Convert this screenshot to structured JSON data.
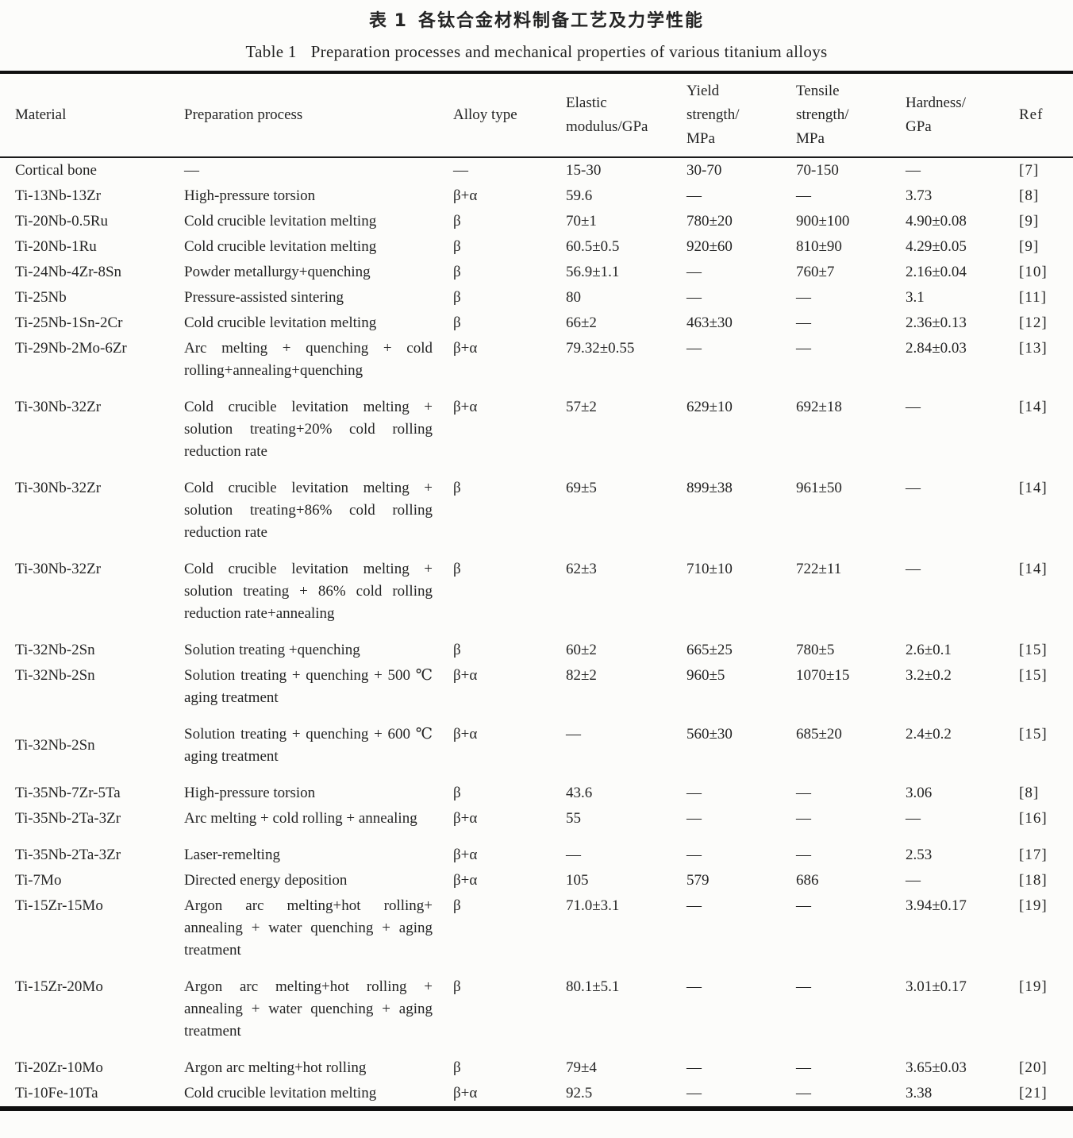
{
  "titles": {
    "cn_label": "表 1",
    "cn_text": "各钛合金材料制备工艺及力学性能",
    "en_label": "Table 1",
    "en_text": "Preparation processes and mechanical properties of various titanium alloys"
  },
  "table": {
    "columns": [
      "Material",
      "Preparation process",
      "Alloy type",
      "Elastic\nmodulus/GPa",
      "Yield\nstrength/\nMPa",
      "Tensile\nstrength/\nMPa",
      "Hardness/\nGPa",
      "Ref"
    ],
    "rows": [
      {
        "material": "Cortical bone",
        "process": "—",
        "alloy": "—",
        "elastic": "15-30",
        "yield": "30-70",
        "tensile": "70-150",
        "hardness": "—",
        "ref": "[7]"
      },
      {
        "material": "Ti-13Nb-13Zr",
        "process": "High-pressure torsion",
        "alloy": "β+α",
        "elastic": "59.6",
        "yield": "—",
        "tensile": "—",
        "hardness": "3.73",
        "ref": "[8]"
      },
      {
        "material": "Ti-20Nb-0.5Ru",
        "process": "Cold crucible levitation melting",
        "alloy": "β",
        "elastic": "70±1",
        "yield": "780±20",
        "tensile": "900±100",
        "hardness": "4.90±0.08",
        "ref": "[9]"
      },
      {
        "material": "Ti-20Nb-1Ru",
        "process": "Cold crucible levitation melting",
        "alloy": "β",
        "elastic": "60.5±0.5",
        "yield": "920±60",
        "tensile": "810±90",
        "hardness": "4.29±0.05",
        "ref": "[9]"
      },
      {
        "material": "Ti-24Nb-4Zr-8Sn",
        "process": "Powder metallurgy+quenching",
        "alloy": "β",
        "elastic": "56.9±1.1",
        "yield": "—",
        "tensile": "760±7",
        "hardness": "2.16±0.04",
        "ref": "[10]"
      },
      {
        "material": "Ti-25Nb",
        "process": "Pressure-assisted sintering",
        "alloy": "β",
        "elastic": "80",
        "yield": "—",
        "tensile": "—",
        "hardness": "3.1",
        "ref": "[11]"
      },
      {
        "material": "Ti-25Nb-1Sn-2Cr",
        "process": "Cold crucible levitation melting",
        "alloy": "β",
        "elastic": "66±2",
        "yield": "463±30",
        "tensile": "—",
        "hardness": "2.36±0.13",
        "ref": "[12]"
      },
      {
        "material": "Ti-29Nb-2Mo-6Zr",
        "process": "Arc melting + quenching + cold rolling+annealing+quenching",
        "alloy": "β+α",
        "elastic": "79.32±0.55",
        "yield": "—",
        "tensile": "—",
        "hardness": "2.84±0.03",
        "ref": "[13]",
        "gap": true
      },
      {
        "material": "Ti-30Nb-32Zr",
        "process": "Cold crucible levitation melting + solution treating+20% cold rolling reduction rate",
        "alloy": "β+α",
        "elastic": "57±2",
        "yield": "629±10",
        "tensile": "692±18",
        "hardness": "—",
        "ref": "[14]",
        "gap": true
      },
      {
        "material": "Ti-30Nb-32Zr",
        "process": "Cold crucible levitation melting + solution treating+86% cold rolling reduction rate",
        "alloy": "β",
        "elastic": "69±5",
        "yield": "899±38",
        "tensile": "961±50",
        "hardness": "—",
        "ref": "[14]",
        "gap": true
      },
      {
        "material": "Ti-30Nb-32Zr",
        "process": "Cold crucible levitation melting + solution treating + 86% cold rolling reduction rate+annealing",
        "alloy": "β",
        "elastic": "62±3",
        "yield": "710±10",
        "tensile": "722±11",
        "hardness": "—",
        "ref": "[14]",
        "gap": true
      },
      {
        "material": "Ti-32Nb-2Sn",
        "process": "Solution treating +quenching",
        "alloy": "β",
        "elastic": "60±2",
        "yield": "665±25",
        "tensile": "780±5",
        "hardness": "2.6±0.1",
        "ref": "[15]"
      },
      {
        "material": "Ti-32Nb-2Sn",
        "process": "Solution treating + quenching + 500 ℃ aging treatment",
        "alloy": "β+α",
        "elastic": "82±2",
        "yield": "960±5",
        "tensile": "1070±15",
        "hardness": "3.2±0.2",
        "ref": "[15]",
        "gap": true
      },
      {
        "material": "Ti-32Nb-2Sn",
        "process": "Solution treating + quenching + 600 ℃ aging treatment",
        "alloy": "β+α",
        "elastic": "—",
        "yield": "560±30",
        "tensile": "685±20",
        "hardness": "2.4±0.2",
        "ref": "[15]",
        "gap": true,
        "mcenter": true
      },
      {
        "material": "Ti-35Nb-7Zr-5Ta",
        "process": "High-pressure torsion",
        "alloy": "β",
        "elastic": "43.6",
        "yield": "—",
        "tensile": "—",
        "hardness": "3.06",
        "ref": "[8]"
      },
      {
        "material": "Ti-35Nb-2Ta-3Zr",
        "process": "Arc melting + cold rolling + annealing",
        "alloy": "β+α",
        "elastic": "55",
        "yield": "—",
        "tensile": "—",
        "hardness": "—",
        "ref": "[16]",
        "gap": true
      },
      {
        "material": "Ti-35Nb-2Ta-3Zr",
        "process": "Laser-remelting",
        "alloy": "β+α",
        "elastic": "—",
        "yield": "—",
        "tensile": "—",
        "hardness": "2.53",
        "ref": "[17]"
      },
      {
        "material": "Ti-7Mo",
        "process": "Directed energy deposition",
        "alloy": "β+α",
        "elastic": "105",
        "yield": "579",
        "tensile": "686",
        "hardness": "—",
        "ref": "[18]"
      },
      {
        "material": "Ti-15Zr-15Mo",
        "process": "Argon arc melting+hot rolling+ annealing + water quenching + aging treatment",
        "alloy": "β",
        "elastic": "71.0±3.1",
        "yield": "—",
        "tensile": "—",
        "hardness": "3.94±0.17",
        "ref": "[19]",
        "gap": true
      },
      {
        "material": "Ti-15Zr-20Mo",
        "process": "Argon arc melting+hot rolling + annealing + water quenching + aging treatment",
        "alloy": "β",
        "elastic": "80.1±5.1",
        "yield": "—",
        "tensile": "—",
        "hardness": "3.01±0.17",
        "ref": "[19]",
        "gap": true
      },
      {
        "material": "Ti-20Zr-10Mo",
        "process": "Argon arc melting+hot rolling",
        "alloy": "β",
        "elastic": "79±4",
        "yield": "—",
        "tensile": "—",
        "hardness": "3.65±0.03",
        "ref": "[20]"
      },
      {
        "material": "Ti-10Fe-10Ta",
        "process": "Cold crucible levitation melting",
        "alloy": "β+α",
        "elastic": "92.5",
        "yield": "—",
        "tensile": "—",
        "hardness": "3.38",
        "ref": "[21]"
      }
    ]
  }
}
